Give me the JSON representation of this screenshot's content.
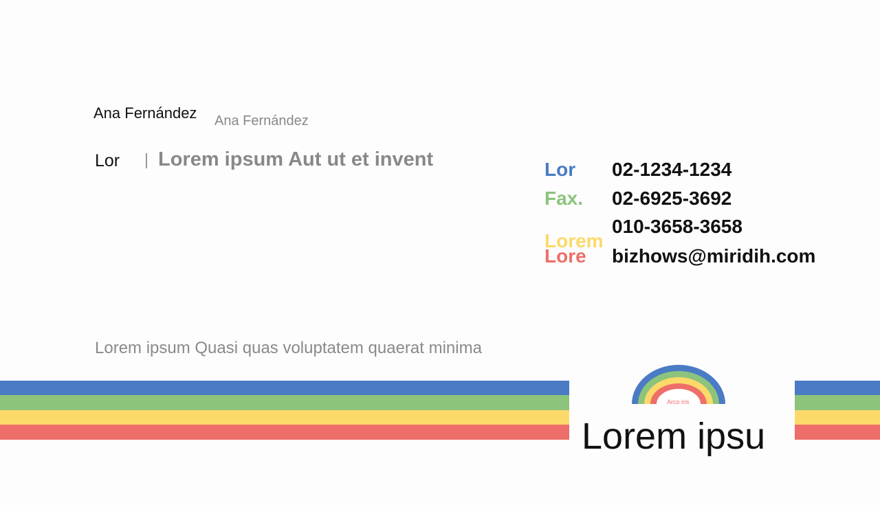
{
  "card": {
    "name": "Ana Fernández",
    "name_alt": "Ana Fernández",
    "position": "Lor",
    "company": "Lorem ipsum Aut ut et invent",
    "contacts": [
      {
        "label": "Lor",
        "value": "02-1234-1234"
      },
      {
        "label": "Fax.",
        "value": "02-6925-3692"
      },
      {
        "label": "Lorem",
        "value": "010-3658-3658"
      },
      {
        "label": "Lore",
        "value": "bizhows@miridih.com"
      }
    ],
    "address": "Lorem ipsum Quasi quas voluptatem quaerat minima",
    "logo_text": "Arco iris",
    "brand": "Lorem ipsu"
  }
}
